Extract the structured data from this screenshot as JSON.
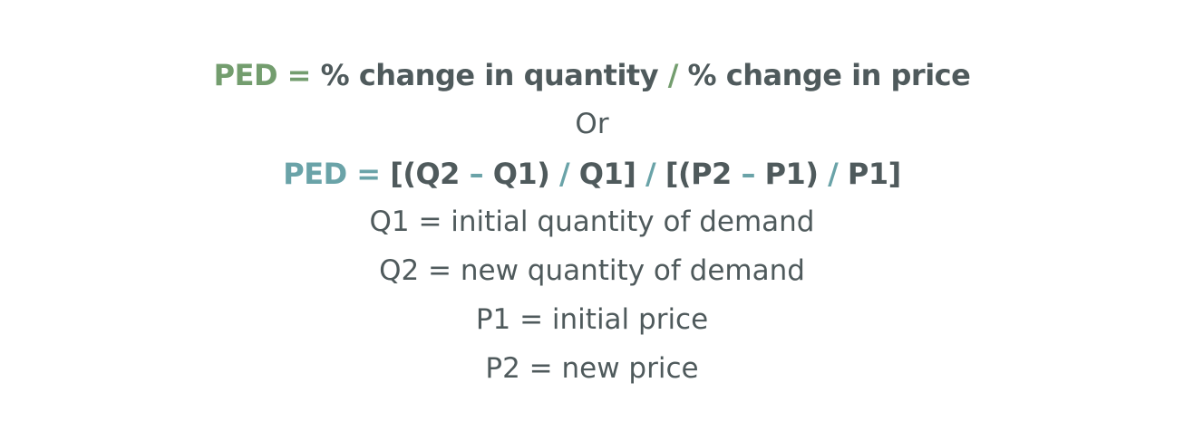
{
  "formula_1": {
    "label": "PED =",
    "numerator": "% change in quantity",
    "operator": "/",
    "denominator": "% change in price"
  },
  "connector": "Or",
  "formula_2": {
    "label": "PED =",
    "parts": [
      "[(Q2",
      "–",
      "Q1)",
      "/",
      "Q1]",
      "/",
      "[(P2",
      "–",
      "P1)",
      "/",
      "P1]"
    ]
  },
  "definitions": [
    "Q1 = initial quantity of demand",
    "Q2 = new quantity of demand",
    "P1 = initial price",
    "P2 = new price"
  ],
  "colors": {
    "text": "#4f5a5c",
    "formula_1_accent": "#739d6e",
    "formula_2_accent": "#6aa3a8"
  }
}
